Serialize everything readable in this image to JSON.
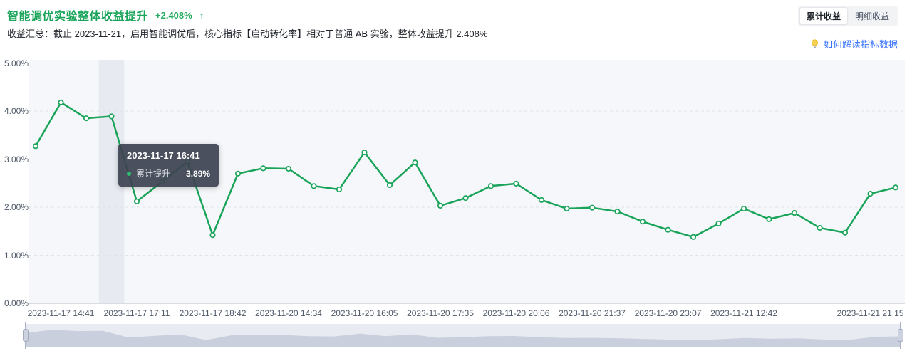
{
  "header": {
    "title": "智能调优实验整体收益提升",
    "delta": "+2.408%",
    "delta_arrow": "↑",
    "subtitle": "收益汇总：截止 2023-11-21，启用智能调优后，核心指标【启动转化率】相对于普通 AB 实验，整体收益提升 2.408%"
  },
  "controls": {
    "tabs": [
      {
        "label": "累计收益",
        "active": true
      },
      {
        "label": "明细收益",
        "active": false
      }
    ],
    "help_link": "如何解读指标数据"
  },
  "tooltip": {
    "title": "2023-11-17 16:41",
    "series": "累计提升",
    "value": "3.89%"
  },
  "chart_data": {
    "type": "line",
    "title": "智能调优实验整体收益提升",
    "series": [
      {
        "name": "累计提升",
        "color": "#1aa45a",
        "values": [
          3.27,
          4.18,
          3.85,
          3.89,
          2.12,
          2.53,
          2.95,
          1.42,
          2.7,
          2.81,
          2.8,
          2.44,
          2.37,
          3.14,
          2.46,
          2.93,
          2.03,
          2.19,
          2.44,
          2.49,
          2.15,
          1.97,
          1.99,
          1.91,
          1.7,
          1.53,
          1.38,
          1.66,
          1.97,
          1.75,
          1.88,
          1.57,
          1.47,
          2.28,
          2.41
        ]
      }
    ],
    "x_tick_labels": [
      "2023-11-17 14:41",
      "2023-11-17 17:11",
      "2023-11-17 18:42",
      "2023-11-20 14:34",
      "2023-11-20 16:05",
      "2023-11-20 17:35",
      "2023-11-20 20:06",
      "2023-11-20 21:37",
      "2023-11-20 23:07",
      "2023-11-21 12:42",
      "2023-11-21 21:15"
    ],
    "x_tick_indices": [
      1,
      4,
      7,
      10,
      13,
      16,
      19,
      22,
      25,
      28,
      33
    ],
    "highlight_index": 3,
    "highlight_label": "2023-11-17 16:41",
    "highlight_value": "3.89%",
    "y_ticks": [
      "0.00%",
      "1.00%",
      "2.00%",
      "3.00%",
      "4.00%",
      "5.00%"
    ],
    "ylim": [
      0,
      5
    ],
    "xlabel": "",
    "ylabel": "",
    "grid": "dashed horizontal",
    "legend_position": "none"
  },
  "colors": {
    "line_green": "#1aa45a",
    "link_blue": "#3370ff",
    "plot_bg": "#f5f7fa",
    "band": "#e7eaf1",
    "tooltip_bg": "#3c4351",
    "brush_fill": "#c9cfdc",
    "brush_bg": "#e9ebf2"
  }
}
